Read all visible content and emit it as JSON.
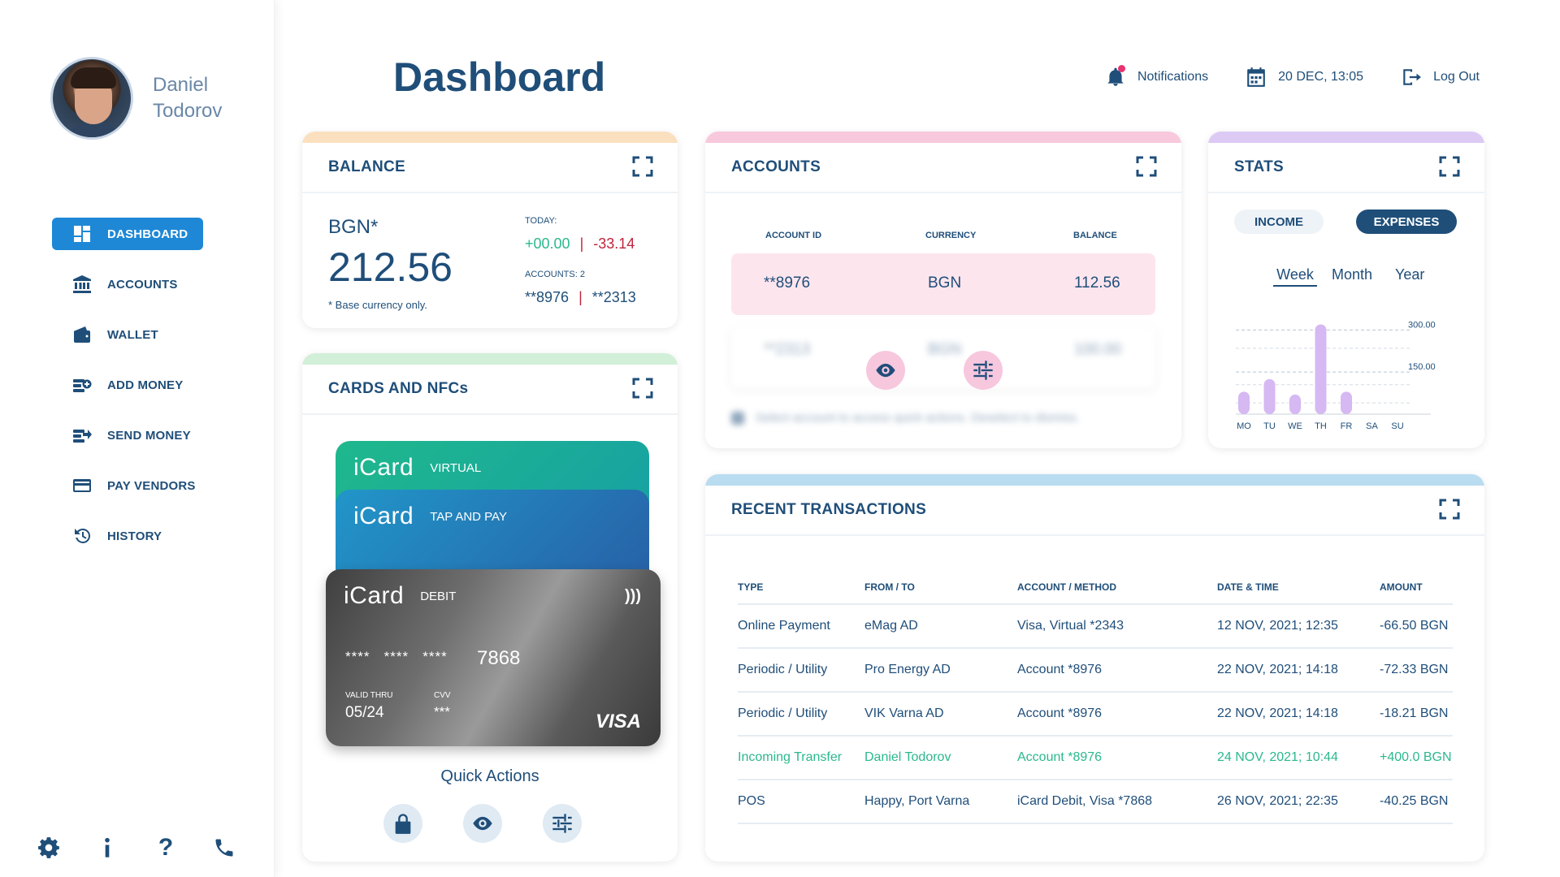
{
  "user": {
    "first_name": "Daniel",
    "last_name": "Todorov"
  },
  "page_title": "Dashboard",
  "topbar": {
    "notifications": "Notifications",
    "datetime": "20 DEC, 13:05",
    "logout": "Log Out"
  },
  "nav": [
    {
      "label": "DASHBOARD",
      "icon": "dashboard-icon",
      "active": true
    },
    {
      "label": "ACCOUNTS",
      "icon": "bank-icon"
    },
    {
      "label": "WALLET",
      "icon": "wallet-icon"
    },
    {
      "label": "ADD MONEY",
      "icon": "add-money-icon"
    },
    {
      "label": "SEND MONEY",
      "icon": "send-money-icon"
    },
    {
      "label": "PAY VENDORS",
      "icon": "credit-card-icon"
    },
    {
      "label": "HISTORY",
      "icon": "history-icon"
    }
  ],
  "bottom_icons": [
    "settings-icon",
    "info-icon",
    "help-icon",
    "phone-icon"
  ],
  "balance": {
    "title": "BALANCE",
    "currency": "BGN*",
    "value": "212.56",
    "note": "* Base currency only.",
    "today_label": "TODAY:",
    "today_plus": "+00.00",
    "today_minus": "-33.14",
    "accounts_label": "ACCOUNTS: 2",
    "account_1": "**8976",
    "account_2": "**2313",
    "accent": "#fbe0c0"
  },
  "cards": {
    "title": "CARDS AND NFCs",
    "accent": "#d2efd8",
    "virtual": {
      "brand": "iCard",
      "kind": "VIRTUAL"
    },
    "tap": {
      "brand": "iCard",
      "kind": "TAP AND PAY"
    },
    "debit": {
      "brand": "iCard",
      "kind": "DEBIT",
      "masked": "****   ****   ****",
      "last4": "7868",
      "valid_label": "VALID THRU",
      "valid": "05/24",
      "cvv_label": "CVV",
      "cvv": "***",
      "network": "VISA"
    },
    "quick_actions": "Quick Actions",
    "quick_action_icons": [
      "lock-icon",
      "eye-icon",
      "sliders-icon"
    ]
  },
  "accounts": {
    "title": "ACCOUNTS",
    "accent": "#f8c9dd",
    "columns": [
      "ACCOUNT ID",
      "CURRENCY",
      "BALANCE"
    ],
    "rows": [
      {
        "id": "**8976",
        "currency": "BGN",
        "balance": "112.56"
      },
      {
        "id": "**2313",
        "currency": "BGN",
        "balance": "100.00"
      }
    ],
    "hint": "Select account to access quick actions. Deselect to dismiss."
  },
  "stats": {
    "title": "STATS",
    "accent": "#dccaf5",
    "income": "INCOME",
    "expenses": "EXPENSES",
    "periods": [
      "Week",
      "Month",
      "Year"
    ],
    "chart_data": {
      "type": "bar",
      "categories": [
        "MO",
        "TU",
        "WE",
        "TH",
        "FR",
        "SA",
        "SU"
      ],
      "values": [
        80,
        125,
        70,
        320,
        80,
        0,
        0
      ],
      "ylim": [
        0,
        330
      ],
      "gridlines": [
        "300.00",
        "150.00"
      ],
      "grid": true,
      "color": "#d6b8f2"
    }
  },
  "transactions": {
    "title": "RECENT TRANSACTIONS",
    "accent": "#b9dcf1",
    "columns": [
      "TYPE",
      "FROM / TO",
      "ACCOUNT / METHOD",
      "DATE & TIME",
      "AMOUNT"
    ],
    "rows": [
      {
        "type": "Online Payment",
        "party": "eMag AD",
        "method": "Visa, Virtual *2343",
        "date": "12 NOV, 2021; 12:35",
        "amount": "-66.50 BGN",
        "incoming": false
      },
      {
        "type": "Periodic / Utility",
        "party": "Pro Energy AD",
        "method": "Account *8976",
        "date": "22 NOV, 2021; 14:18",
        "amount": "-72.33 BGN",
        "incoming": false
      },
      {
        "type": "Periodic / Utility",
        "party": "VIK Varna AD",
        "method": "Account *8976",
        "date": "22 NOV, 2021; 14:18",
        "amount": "-18.21 BGN",
        "incoming": false
      },
      {
        "type": "Incoming Transfer",
        "party": "Daniel Todorov",
        "method": "Account *8976",
        "date": "24 NOV, 2021; 10:44",
        "amount": "+400.0 BGN",
        "incoming": true
      },
      {
        "type": "POS",
        "party": "Happy, Port Varna",
        "method": "iCard Debit, Visa *7868",
        "date": "26 NOV, 2021; 22:35",
        "amount": "-40.25 BGN",
        "incoming": false
      }
    ]
  }
}
